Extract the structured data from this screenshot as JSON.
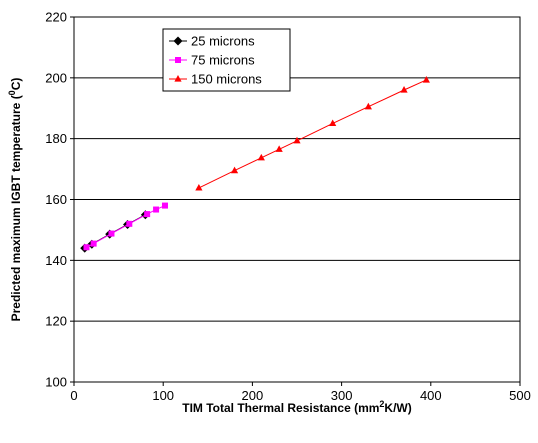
{
  "chart_data": {
    "type": "scatter",
    "title": "",
    "xlabel_main": "TIM Total Thermal Resistance (mm",
    "xlabel_sup": "2",
    "xlabel_tail": "K/W)",
    "ylabel_main": "Predicted maximum IGBT temperature (",
    "ylabel_sup": "0",
    "ylabel_tail": "C)",
    "xlim": [
      0,
      500
    ],
    "ylim": [
      100,
      220
    ],
    "xticks": [
      0,
      100,
      200,
      300,
      400,
      500
    ],
    "yticks": [
      100,
      120,
      140,
      160,
      180,
      200,
      220
    ],
    "grid": "horizontal",
    "legend_position": "top-left-inside",
    "series": [
      {
        "name": "25 microns",
        "color": "#000000",
        "marker": "diamond",
        "x": [
          12,
          20,
          40,
          60,
          80
        ],
        "y": [
          144.0,
          145.3,
          148.6,
          151.8,
          155.0
        ]
      },
      {
        "name": "75 microns",
        "color": "#ff00ff",
        "marker": "square",
        "x": [
          14,
          22,
          42,
          62,
          82,
          92,
          102
        ],
        "y": [
          144.3,
          145.5,
          148.8,
          152.0,
          155.2,
          156.7,
          158.0
        ]
      },
      {
        "name": "150 microns",
        "color": "#ff0000",
        "marker": "triangle",
        "x": [
          140,
          180,
          210,
          230,
          250,
          290,
          330,
          370,
          395
        ],
        "y": [
          163.8,
          169.5,
          173.7,
          176.5,
          179.3,
          185.0,
          190.5,
          196.0,
          199.3
        ]
      }
    ]
  }
}
